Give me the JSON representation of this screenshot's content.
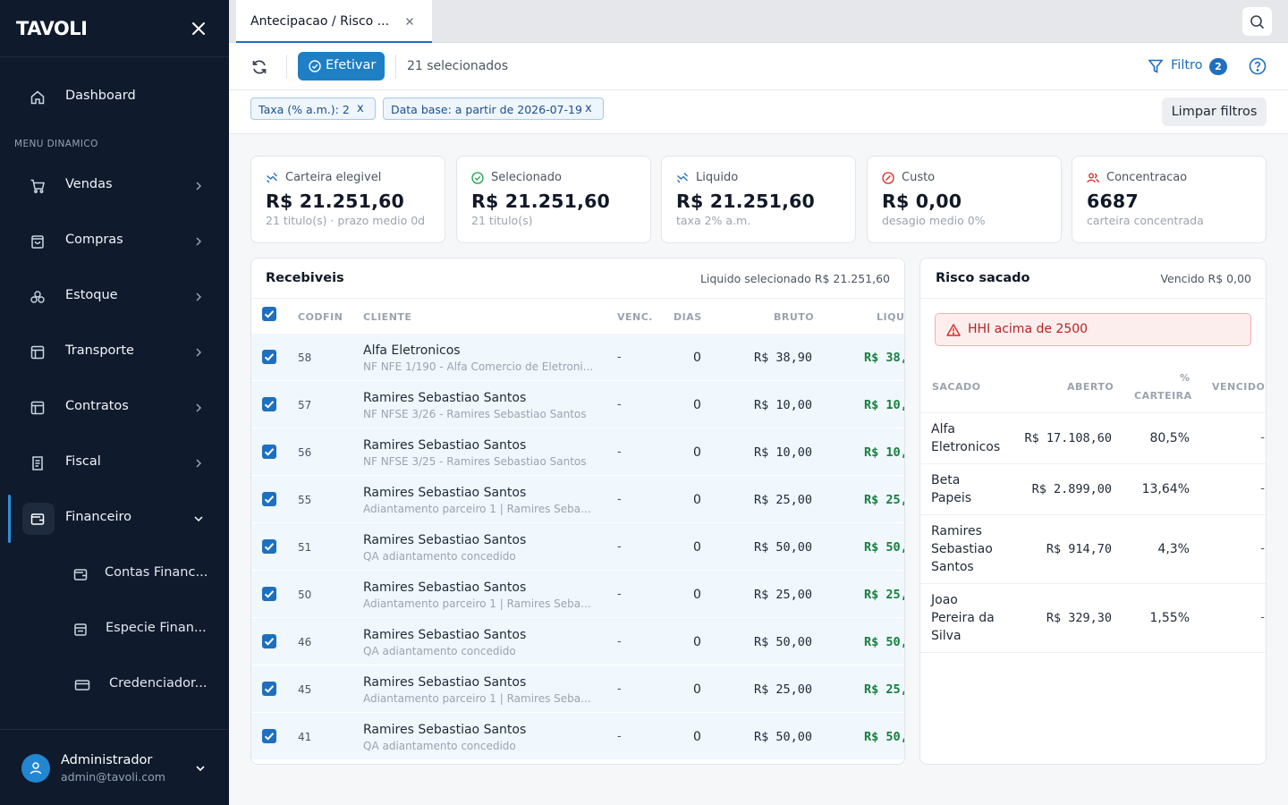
{
  "app": {
    "logo": "TAVOLI"
  },
  "sidebar": {
    "section_label": "MENU DINAMICO",
    "items": [
      {
        "label": "Dashboard",
        "icon": "home-icon"
      },
      {
        "label": "Vendas",
        "icon": "cart-icon"
      },
      {
        "label": "Compras",
        "icon": "shopping-bag-icon"
      },
      {
        "label": "Estoque",
        "icon": "boxes-icon"
      },
      {
        "label": "Transporte",
        "icon": "truck-icon"
      },
      {
        "label": "Contratos",
        "icon": "file-contract-icon"
      },
      {
        "label": "Fiscal",
        "icon": "receipt-icon"
      },
      {
        "label": "Financeiro",
        "icon": "wallet-icon"
      }
    ],
    "subitems": [
      {
        "label": "Contas Financ...",
        "icon": "wallet-icon"
      },
      {
        "label": "Especie Finan...",
        "icon": "coins-icon"
      },
      {
        "label": "Credenciador...",
        "icon": "credit-card-icon"
      }
    ],
    "user": {
      "name": "Administrador",
      "email": "admin@tavoli.com"
    }
  },
  "tabs": [
    {
      "label": "Antecipacao / Risco ..."
    }
  ],
  "toolbar": {
    "efetivar_label": "Efetivar",
    "selected_text": "21 selecionados",
    "filter_label": "Filtro",
    "filter_count": "2"
  },
  "filters": {
    "chips": [
      {
        "label": "Taxa (% a.m.): 2",
        "remove": "x"
      },
      {
        "label": "Data base: a partir de 2026-07-19",
        "remove": "x"
      }
    ],
    "clear_label": "Limpar filtros"
  },
  "kpis": [
    {
      "label": "Carteira elegivel",
      "value": "R$ 21.251,60",
      "sub": "21 titulo(s) · prazo medio 0d"
    },
    {
      "label": "Selecionado",
      "value": "R$ 21.251,60",
      "sub": "21 titulo(s)"
    },
    {
      "label": "Liquido",
      "value": "R$ 21.251,60",
      "sub": "taxa 2% a.m."
    },
    {
      "label": "Custo",
      "value": "R$ 0,00",
      "sub": "desagio medio 0%"
    },
    {
      "label": "Concentracao",
      "value": "6687",
      "sub": "carteira concentrada"
    }
  ],
  "colors": {
    "accent": "#1e6fbf",
    "sidebar_bg": "#0f1a2c",
    "success": "#15803d",
    "danger": "#dc2626"
  },
  "receivables": {
    "title": "Recebiveis",
    "summary": "Liquido selecionado R$ 21.251,60",
    "columns": {
      "codfin": "CODFIN",
      "cliente": "CLIENTE",
      "venc": "VENC.",
      "dias": "DIAS",
      "bruto": "BRUTO",
      "liquido": "LIQU"
    },
    "rows": [
      {
        "codfin": "58",
        "client": "Alfa Eletronicos",
        "desc": "NF NFE 1/190 - Alfa Comercio de Eletroni...",
        "venc": "-",
        "dias": "0",
        "bruto": "R$ 38,90",
        "liquido": "R$ 38,"
      },
      {
        "codfin": "57",
        "client": "Ramires Sebastiao Santos",
        "desc": "NF NFSE 3/26 - Ramires Sebastiao Santos",
        "venc": "-",
        "dias": "0",
        "bruto": "R$ 10,00",
        "liquido": "R$ 10,"
      },
      {
        "codfin": "56",
        "client": "Ramires Sebastiao Santos",
        "desc": "NF NFSE 3/25 - Ramires Sebastiao Santos",
        "venc": "-",
        "dias": "0",
        "bruto": "R$ 10,00",
        "liquido": "R$ 10,"
      },
      {
        "codfin": "55",
        "client": "Ramires Sebastiao Santos",
        "desc": "Adiantamento parceiro 1 | Ramires Seba...",
        "venc": "-",
        "dias": "0",
        "bruto": "R$ 25,00",
        "liquido": "R$ 25,"
      },
      {
        "codfin": "51",
        "client": "Ramires Sebastiao Santos",
        "desc": "QA adiantamento concedido",
        "venc": "-",
        "dias": "0",
        "bruto": "R$ 50,00",
        "liquido": "R$ 50,"
      },
      {
        "codfin": "50",
        "client": "Ramires Sebastiao Santos",
        "desc": "Adiantamento parceiro 1 | Ramires Seba...",
        "venc": "-",
        "dias": "0",
        "bruto": "R$ 25,00",
        "liquido": "R$ 25,"
      },
      {
        "codfin": "46",
        "client": "Ramires Sebastiao Santos",
        "desc": "QA adiantamento concedido",
        "venc": "-",
        "dias": "0",
        "bruto": "R$ 50,00",
        "liquido": "R$ 50,"
      },
      {
        "codfin": "45",
        "client": "Ramires Sebastiao Santos",
        "desc": "Adiantamento parceiro 1 | Ramires Seba...",
        "venc": "-",
        "dias": "0",
        "bruto": "R$ 25,00",
        "liquido": "R$ 25,"
      },
      {
        "codfin": "41",
        "client": "Ramires Sebastiao Santos",
        "desc": "QA adiantamento concedido",
        "venc": "-",
        "dias": "0",
        "bruto": "R$ 50,00",
        "liquido": "R$ 50,"
      }
    ]
  },
  "risk": {
    "title": "Risco sacado",
    "summary": "Vencido R$ 0,00",
    "alert": "HHI acima de 2500",
    "columns": {
      "sacado": "SACADO",
      "aberto": "ABERTO",
      "carteira_1": "%",
      "carteira_2": "CARTEIRA",
      "vencido": "VENCIDO"
    },
    "rows": [
      {
        "lines": [
          "Alfa",
          "Eletronicos"
        ],
        "aberto": "R$ 17.108,60",
        "pct": "80,5%",
        "vencido": "-"
      },
      {
        "lines": [
          "Beta",
          "Papeis"
        ],
        "aberto": "R$ 2.899,00",
        "pct": "13,64%",
        "vencido": "-"
      },
      {
        "lines": [
          "Ramires",
          "Sebastiao",
          "Santos"
        ],
        "aberto": "R$ 914,70",
        "pct": "4,3%",
        "vencido": "-"
      },
      {
        "lines": [
          "Joao",
          "Pereira da",
          "Silva"
        ],
        "aberto": "R$ 329,30",
        "pct": "1,55%",
        "vencido": "-"
      }
    ]
  }
}
